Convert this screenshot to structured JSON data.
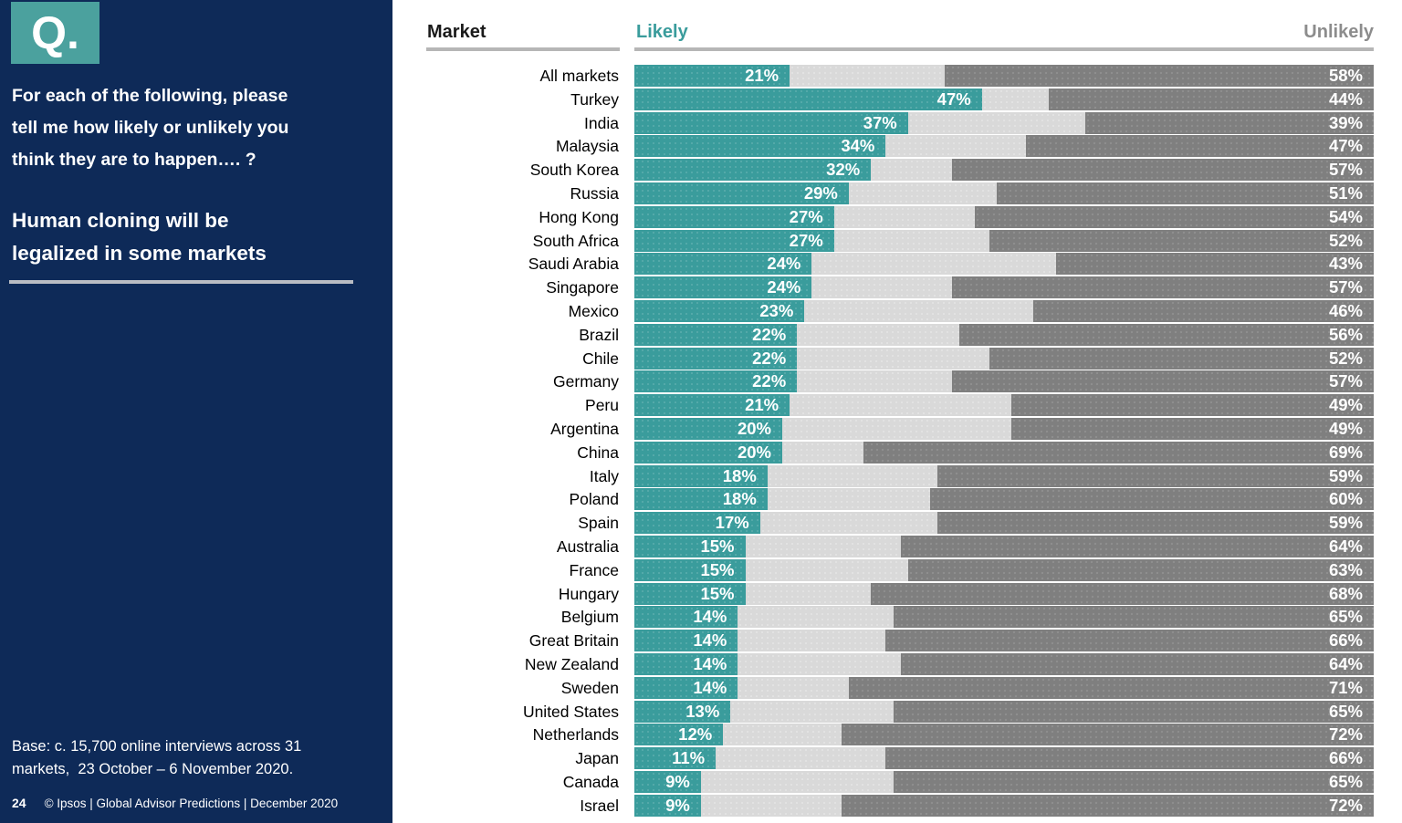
{
  "sidebar": {
    "logo": "Q.",
    "question_lines": "For each of the following, please\ntell me how likely or unlikely you\nthink they are to happen…. ?",
    "statement_lines": "Human cloning will be\nlegalized in some markets",
    "base_lines": "Base: c. 15,700 online interviews across 31\nmarkets,  23 October – 6 November 2020.",
    "page_number": "24",
    "footer_text": "© Ipsos | Global Advisor Predictions | December 2020"
  },
  "header": {
    "market": "Market",
    "likely": "Likely",
    "unlikely": "Unlikely"
  },
  "colors": {
    "sidebar_navy": "#0E2A58",
    "logo_teal": "#4BA19E",
    "likely_teal": "#3A9C9C",
    "unlikely_dark_gray": "#7F7F7F",
    "middle_light_gray": "#D9D9D9",
    "underline_gray": "#B6B6B6",
    "unlikely_header_gray": "#8C8C8C"
  },
  "chart_data": {
    "type": "bar",
    "orientation": "horizontal-diverging-stacked",
    "title": "Human cloning will be legalized in some markets",
    "value_suffix": "%",
    "xlim": [
      0,
      100
    ],
    "grid": false,
    "legend_position": "top (Likely left / Unlikely right)",
    "categories": [
      "All markets",
      "Turkey",
      "India",
      "Malaysia",
      "South Korea",
      "Russia",
      "Hong Kong",
      "South Africa",
      "Saudi Arabia",
      "Singapore",
      "Mexico",
      "Brazil",
      "Chile",
      "Germany",
      "Peru",
      "Argentina",
      "China",
      "Italy",
      "Poland",
      "Spain",
      "Australia",
      "France",
      "Hungary",
      "Belgium",
      "Great Britain",
      "New Zealand",
      "Sweden",
      "United States",
      "Netherlands",
      "Japan",
      "Canada",
      "Israel"
    ],
    "series": [
      {
        "name": "Likely",
        "color": "#3A9C9C",
        "values": [
          21,
          47,
          37,
          34,
          32,
          29,
          27,
          27,
          24,
          24,
          23,
          22,
          22,
          22,
          21,
          20,
          20,
          18,
          18,
          17,
          15,
          15,
          15,
          14,
          14,
          14,
          14,
          13,
          12,
          11,
          9,
          9
        ]
      },
      {
        "name": "Unlikely",
        "color": "#7F7F7F",
        "values": [
          58,
          44,
          39,
          47,
          57,
          51,
          54,
          52,
          43,
          57,
          46,
          56,
          52,
          57,
          49,
          49,
          69,
          59,
          60,
          59,
          64,
          63,
          68,
          65,
          66,
          64,
          71,
          65,
          72,
          66,
          65,
          72
        ]
      }
    ]
  }
}
